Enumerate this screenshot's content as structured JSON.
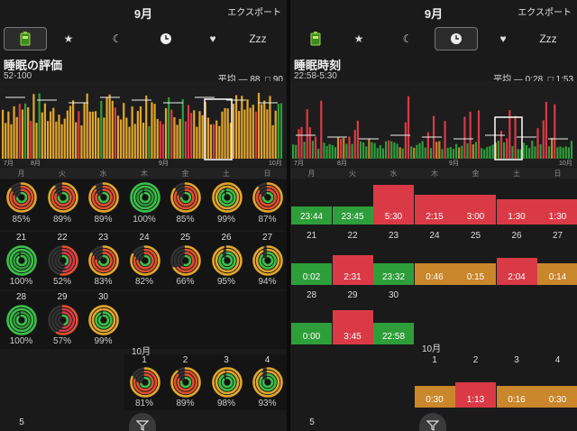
{
  "left": {
    "month": "9月",
    "export_label": "エクスポート",
    "tabs": [
      {
        "icon": "battery-icon",
        "label": "",
        "selected": true
      },
      {
        "icon": "star-icon",
        "label": "★",
        "selected": false
      },
      {
        "icon": "moon-icon",
        "label": "☾",
        "selected": false
      },
      {
        "icon": "clock-icon",
        "label": "",
        "selected": false
      },
      {
        "icon": "heart-icon",
        "label": "♥",
        "selected": false
      },
      {
        "icon": "zzz-icon",
        "label": "Zzz",
        "selected": false
      }
    ],
    "section_title": "睡眠の評価",
    "range": "52-100",
    "average_label": "平均 — 88",
    "average_box": "□ 90",
    "chart_month_labels": [
      "7月",
      "8月",
      "9月",
      "10月"
    ],
    "weekdays": [
      "月",
      "火",
      "水",
      "木",
      "金",
      "土",
      "日"
    ],
    "days": [
      {
        "day": "",
        "pct": "85%"
      },
      {
        "day": "",
        "pct": "89%"
      },
      {
        "day": "",
        "pct": "89%"
      },
      {
        "day": "",
        "pct": "100%"
      },
      {
        "day": "",
        "pct": "85%"
      },
      {
        "day": "",
        "pct": "99%"
      },
      {
        "day": "",
        "pct": "87%"
      },
      {
        "day": "21",
        "pct": "100%"
      },
      {
        "day": "22",
        "pct": "52%"
      },
      {
        "day": "23",
        "pct": "83%"
      },
      {
        "day": "24",
        "pct": "82%"
      },
      {
        "day": "25",
        "pct": "66%"
      },
      {
        "day": "26",
        "pct": "95%"
      },
      {
        "day": "27",
        "pct": "94%"
      },
      {
        "day": "28",
        "pct": "100%"
      },
      {
        "day": "29",
        "pct": "57%"
      },
      {
        "day": "30",
        "pct": "99%"
      }
    ],
    "next_month_label": "10月",
    "oct_days": [
      {
        "day": "1",
        "pct": "81%"
      },
      {
        "day": "2",
        "pct": "89%"
      },
      {
        "day": "3",
        "pct": "98%"
      },
      {
        "day": "4",
        "pct": "93%"
      }
    ],
    "last_day": "5"
  },
  "right": {
    "month": "9月",
    "export_label": "エクスポート",
    "section_title": "睡眠時刻",
    "range": "22:58-5:30",
    "average_label": "平均 — 0:28",
    "average_box": "□ 1:53",
    "chart_month_labels": [
      "7月",
      "8月",
      "9月",
      "10月"
    ],
    "weekdays": [
      "月",
      "火",
      "水",
      "木",
      "金",
      "土",
      "日"
    ],
    "days": [
      {
        "day": "",
        "time": "23:44",
        "color": "#2e9e3a",
        "h": 20
      },
      {
        "day": "",
        "time": "23:45",
        "color": "#2e9e3a",
        "h": 20
      },
      {
        "day": "",
        "time": "5:30",
        "color": "#d93a46",
        "h": 44
      },
      {
        "day": "",
        "time": "2:15",
        "color": "#d93a46",
        "h": 33
      },
      {
        "day": "",
        "time": "3:00",
        "color": "#d93a46",
        "h": 33
      },
      {
        "day": "",
        "time": "1:30",
        "color": "#d93a46",
        "h": 28
      },
      {
        "day": "",
        "time": "1:30",
        "color": "#d93a46",
        "h": 28
      },
      {
        "day": "21",
        "time": "0:02",
        "color": "#2e9e3a",
        "h": 24
      },
      {
        "day": "22",
        "time": "2:31",
        "color": "#d93a46",
        "h": 33
      },
      {
        "day": "23",
        "time": "23:32",
        "color": "#2e9e3a",
        "h": 24
      },
      {
        "day": "24",
        "time": "0:46",
        "color": "#c9862b",
        "h": 24
      },
      {
        "day": "25",
        "time": "0:15",
        "color": "#c9862b",
        "h": 24
      },
      {
        "day": "26",
        "time": "2:04",
        "color": "#d93a46",
        "h": 30
      },
      {
        "day": "27",
        "time": "0:14",
        "color": "#c9862b",
        "h": 24
      },
      {
        "day": "28",
        "time": "0:00",
        "color": "#2e9e3a",
        "h": 24
      },
      {
        "day": "29",
        "time": "3:45",
        "color": "#d93a46",
        "h": 38
      },
      {
        "day": "30",
        "time": "22:58",
        "color": "#2e9e3a",
        "h": 24
      }
    ],
    "next_month_label": "10月",
    "oct_days": [
      {
        "day": "1",
        "time": "0:30",
        "color": "#c9862b",
        "h": 24
      },
      {
        "day": "2",
        "time": "1:13",
        "color": "#d93a46",
        "h": 28
      },
      {
        "day": "3",
        "time": "0:16",
        "color": "#c9862b",
        "h": 24
      },
      {
        "day": "4",
        "time": "0:30",
        "color": "#c9862b",
        "h": 24
      }
    ],
    "last_day": "5"
  }
}
